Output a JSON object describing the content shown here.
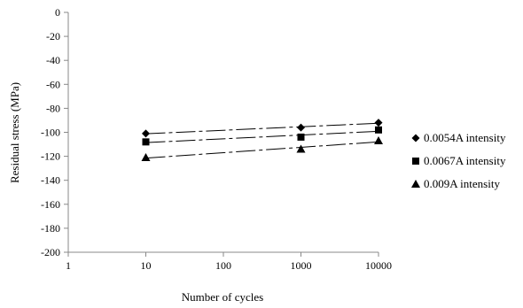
{
  "chart_data": {
    "type": "scatter",
    "title": "",
    "xlabel": "Number of cycles",
    "ylabel": "Residual stress (MPa)",
    "x_scale": "log",
    "xlim": [
      1,
      10000
    ],
    "ylim": [
      -200,
      0
    ],
    "x_ticks": [
      "1",
      "10",
      "100",
      "1000",
      "10000"
    ],
    "y_ticks": [
      "0",
      "-20",
      "-40",
      "-60",
      "-80",
      "-100",
      "-120",
      "-140",
      "-160",
      "-180",
      "-200"
    ],
    "grid": false,
    "legend_position": "right",
    "trendlines": "dashed linear",
    "series": [
      {
        "name": "0.0054A intensity",
        "marker": "diamond",
        "x": [
          10,
          1000,
          10000
        ],
        "y": [
          -101,
          -96,
          -92
        ]
      },
      {
        "name": "0.0067A intensity",
        "marker": "square",
        "x": [
          10,
          1000,
          10000
        ],
        "y": [
          -108,
          -104,
          -98
        ]
      },
      {
        "name": "0.009A intensity",
        "marker": "triangle",
        "x": [
          10,
          1000,
          10000
        ],
        "y": [
          -121,
          -114,
          -107
        ]
      }
    ]
  }
}
